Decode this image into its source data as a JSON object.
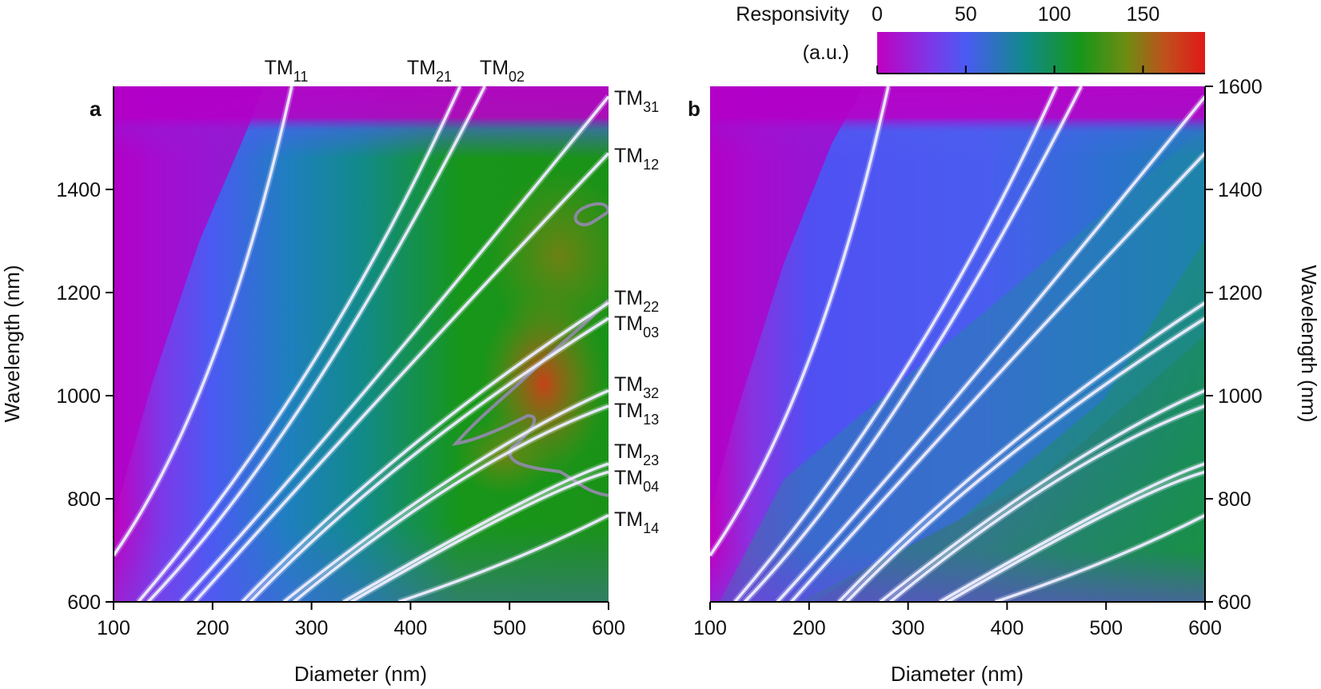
{
  "chart_data": [
    {
      "type": "heatmap",
      "panel": "a",
      "xlabel": "Diameter (nm)",
      "ylabel": "Wavelength (nm)",
      "xlim": [
        100,
        600
      ],
      "ylim": [
        600,
        1600
      ],
      "x_ticks": [
        "100",
        "200",
        "300",
        "400",
        "500",
        "600"
      ],
      "y_ticks": [
        "600",
        "800",
        "1000",
        "1200",
        "1400"
      ],
      "y_axis_side": "left",
      "colors": {
        "low": "#c000c0",
        "high": "#e01818",
        "mode_line": "#e8e8ff",
        "contour": "#8a8aa0"
      },
      "mode_labels": [
        {
          "base": "TM",
          "sub": "11",
          "position": "top"
        },
        {
          "base": "TM",
          "sub": "21",
          "position": "top"
        },
        {
          "base": "TM",
          "sub": "02",
          "position": "top"
        },
        {
          "base": "TM",
          "sub": "31",
          "position": "right"
        },
        {
          "base": "TM",
          "sub": "12",
          "position": "right"
        },
        {
          "base": "TM",
          "sub": "22",
          "position": "right"
        },
        {
          "base": "TM",
          "sub": "03",
          "position": "right"
        },
        {
          "base": "TM",
          "sub": "32",
          "position": "right"
        },
        {
          "base": "TM",
          "sub": "13",
          "position": "right"
        },
        {
          "base": "TM",
          "sub": "23",
          "position": "right"
        },
        {
          "base": "TM",
          "sub": "04",
          "position": "right"
        },
        {
          "base": "TM",
          "sub": "14",
          "position": "right"
        }
      ],
      "mode_lines": [
        {
          "name": "TM11",
          "points": [
            [
              100,
              690
            ],
            [
              200,
              1070
            ],
            [
              280,
              1600
            ]
          ]
        },
        {
          "name": "TM21",
          "points": [
            [
              125,
              600
            ],
            [
              300,
              1060
            ],
            [
              450,
              1600
            ]
          ]
        },
        {
          "name": "TM02",
          "points": [
            [
              135,
              600
            ],
            [
              300,
              1010
            ],
            [
              475,
              1600
            ]
          ]
        },
        {
          "name": "TM31",
          "points": [
            [
              168,
              600
            ],
            [
              350,
              1000
            ],
            [
              600,
              1580
            ]
          ]
        },
        {
          "name": "TM12",
          "points": [
            [
              182,
              600
            ],
            [
              400,
              1060
            ],
            [
              600,
              1470
            ]
          ]
        },
        {
          "name": "TM22",
          "points": [
            [
              230,
              600
            ],
            [
              400,
              900
            ],
            [
              600,
              1180
            ]
          ]
        },
        {
          "name": "TM03",
          "points": [
            [
              238,
              600
            ],
            [
              400,
              880
            ],
            [
              600,
              1150
            ]
          ]
        },
        {
          "name": "TM32",
          "points": [
            [
              272,
              600
            ],
            [
              450,
              850
            ],
            [
              600,
              1010
            ]
          ]
        },
        {
          "name": "TM13",
          "points": [
            [
              282,
              600
            ],
            [
              450,
              835
            ],
            [
              600,
              980
            ]
          ]
        },
        {
          "name": "TM23",
          "points": [
            [
              332,
              600
            ],
            [
              500,
              780
            ],
            [
              600,
              868
            ]
          ]
        },
        {
          "name": "TM04",
          "points": [
            [
              340,
              600
            ],
            [
              500,
              770
            ],
            [
              600,
              852
            ]
          ]
        },
        {
          "name": "TM14",
          "points": [
            [
              388,
              600
            ],
            [
              500,
              680
            ],
            [
              600,
              768
            ]
          ]
        }
      ]
    },
    {
      "type": "heatmap",
      "panel": "b",
      "xlabel": "Diameter (nm)",
      "ylabel": "Wavelength (nm)",
      "xlim": [
        100,
        600
      ],
      "ylim": [
        600,
        1600
      ],
      "x_ticks": [
        "100",
        "200",
        "300",
        "400",
        "500",
        "600"
      ],
      "y_ticks": [
        "600",
        "800",
        "1000",
        "1200",
        "1400",
        "1600"
      ],
      "y_axis_side": "right",
      "colors": {
        "low": "#c000c0",
        "high": "#e01818",
        "mode_line": "#e8e8ff"
      },
      "mode_lines": [
        {
          "name": "TM11",
          "points": [
            [
              100,
              690
            ],
            [
              200,
              1070
            ],
            [
              280,
              1600
            ]
          ]
        },
        {
          "name": "TM21",
          "points": [
            [
              125,
              600
            ],
            [
              300,
              1060
            ],
            [
              450,
              1600
            ]
          ]
        },
        {
          "name": "TM02",
          "points": [
            [
              135,
              600
            ],
            [
              300,
              1010
            ],
            [
              475,
              1600
            ]
          ]
        },
        {
          "name": "TM31",
          "points": [
            [
              168,
              600
            ],
            [
              350,
              1000
            ],
            [
              600,
              1580
            ]
          ]
        },
        {
          "name": "TM12",
          "points": [
            [
              182,
              600
            ],
            [
              400,
              1060
            ],
            [
              600,
              1470
            ]
          ]
        },
        {
          "name": "TM22",
          "points": [
            [
              230,
              600
            ],
            [
              400,
              900
            ],
            [
              600,
              1180
            ]
          ]
        },
        {
          "name": "TM03",
          "points": [
            [
              238,
              600
            ],
            [
              400,
              880
            ],
            [
              600,
              1150
            ]
          ]
        },
        {
          "name": "TM32",
          "points": [
            [
              272,
              600
            ],
            [
              450,
              850
            ],
            [
              600,
              1010
            ]
          ]
        },
        {
          "name": "TM13",
          "points": [
            [
              282,
              600
            ],
            [
              450,
              835
            ],
            [
              600,
              980
            ]
          ]
        },
        {
          "name": "TM23",
          "points": [
            [
              332,
              600
            ],
            [
              500,
              780
            ],
            [
              600,
              868
            ]
          ]
        },
        {
          "name": "TM04",
          "points": [
            [
              340,
              600
            ],
            [
              500,
              770
            ],
            [
              600,
              852
            ]
          ]
        },
        {
          "name": "TM14",
          "points": [
            [
              388,
              600
            ],
            [
              500,
              680
            ],
            [
              600,
              768
            ]
          ]
        }
      ]
    }
  ],
  "colorbar": {
    "title_line1": "Responsivity",
    "title_line2": "(a.u.)",
    "range": [
      0,
      185
    ],
    "ticks": [
      "0",
      "50",
      "100",
      "150"
    ],
    "colors": [
      "#c000c0",
      "#4a5af2",
      "#118a8a",
      "#17961a",
      "#6e8c12",
      "#c0501c",
      "#e01818"
    ]
  }
}
